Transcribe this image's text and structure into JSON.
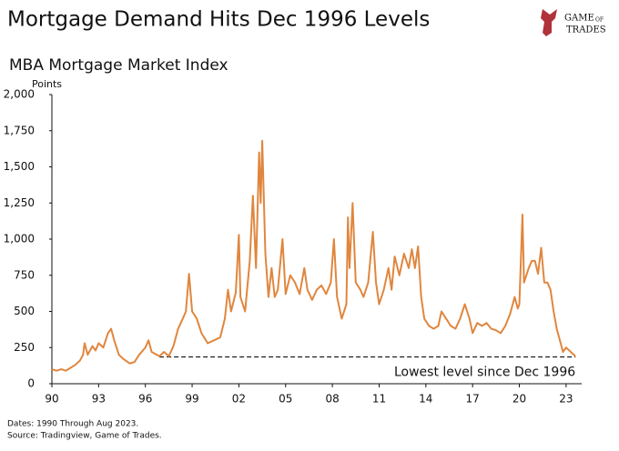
{
  "chart_data": {
    "type": "line",
    "title": "Mortgage Demand Hits Dec 1996 Levels",
    "subtitle": "MBA Mortgage Market Index",
    "y_label": "Points",
    "color": "#e0863e",
    "x": [
      1990,
      1990.3,
      1990.6,
      1990.9,
      1991.2,
      1991.5,
      1991.8,
      1992.0,
      1992.1,
      1992.3,
      1992.6,
      1992.8,
      1993.0,
      1993.3,
      1993.6,
      1993.8,
      1994.0,
      1994.3,
      1994.6,
      1995.0,
      1995.3,
      1995.6,
      1996.0,
      1996.2,
      1996.4,
      1996.9,
      1997.2,
      1997.5,
      1997.8,
      1998.1,
      1998.4,
      1998.6,
      1998.8,
      1999.0,
      1999.3,
      1999.6,
      2000.0,
      2000.4,
      2000.8,
      2001.1,
      2001.3,
      2001.5,
      2001.8,
      2002.0,
      2002.1,
      2002.4,
      2002.7,
      2002.9,
      2003.1,
      2003.3,
      2003.4,
      2003.5,
      2003.7,
      2003.9,
      2004.1,
      2004.3,
      2004.5,
      2004.8,
      2005.0,
      2005.3,
      2005.6,
      2005.9,
      2006.2,
      2006.4,
      2006.7,
      2007.0,
      2007.3,
      2007.6,
      2007.9,
      2008.1,
      2008.3,
      2008.6,
      2008.9,
      2009.0,
      2009.1,
      2009.3,
      2009.5,
      2009.8,
      2010.0,
      2010.3,
      2010.6,
      2010.8,
      2011.0,
      2011.3,
      2011.6,
      2011.8,
      2012.0,
      2012.3,
      2012.6,
      2012.9,
      2013.1,
      2013.3,
      2013.5,
      2013.7,
      2013.9,
      2014.2,
      2014.5,
      2014.8,
      2015.0,
      2015.3,
      2015.6,
      2015.9,
      2016.2,
      2016.5,
      2016.8,
      2017.0,
      2017.3,
      2017.6,
      2017.9,
      2018.2,
      2018.5,
      2018.8,
      2019.1,
      2019.4,
      2019.7,
      2019.9,
      2020.0,
      2020.2,
      2020.3,
      2020.6,
      2020.8,
      2021.0,
      2021.2,
      2021.4,
      2021.6,
      2021.8,
      2022.0,
      2022.2,
      2022.4,
      2022.6,
      2022.8,
      2023.0,
      2023.2,
      2023.4,
      2023.6
    ],
    "values": [
      100,
      90,
      100,
      90,
      110,
      130,
      160,
      200,
      280,
      200,
      260,
      230,
      280,
      250,
      350,
      380,
      300,
      200,
      170,
      140,
      150,
      200,
      250,
      300,
      220,
      190,
      220,
      190,
      260,
      380,
      450,
      500,
      760,
      500,
      450,
      350,
      280,
      300,
      320,
      450,
      650,
      500,
      630,
      1030,
      600,
      500,
      850,
      1300,
      800,
      1600,
      1250,
      1680,
      900,
      600,
      800,
      600,
      650,
      1000,
      620,
      750,
      700,
      620,
      800,
      650,
      580,
      650,
      680,
      620,
      700,
      1000,
      600,
      450,
      550,
      1150,
      800,
      1250,
      700,
      650,
      600,
      700,
      1050,
      700,
      550,
      650,
      800,
      650,
      880,
      750,
      900,
      800,
      930,
      800,
      950,
      600,
      450,
      400,
      380,
      400,
      500,
      450,
      400,
      380,
      450,
      550,
      450,
      350,
      420,
      400,
      420,
      380,
      370,
      350,
      400,
      480,
      600,
      520,
      550,
      1170,
      700,
      800,
      850,
      850,
      760,
      940,
      700,
      700,
      650,
      500,
      380,
      300,
      220,
      250,
      230,
      210,
      190
    ],
    "xlim": [
      1990,
      2024
    ],
    "xticks": [
      {
        "value": 1990,
        "label": "90"
      },
      {
        "value": 1993,
        "label": "93"
      },
      {
        "value": 1996,
        "label": "96"
      },
      {
        "value": 1999,
        "label": "99"
      },
      {
        "value": 2002,
        "label": "02"
      },
      {
        "value": 2005,
        "label": "05"
      },
      {
        "value": 2008,
        "label": "08"
      },
      {
        "value": 2011,
        "label": "11"
      },
      {
        "value": 2014,
        "label": "14"
      },
      {
        "value": 2017,
        "label": "17"
      },
      {
        "value": 2020,
        "label": "20"
      },
      {
        "value": 2023,
        "label": "23"
      }
    ],
    "ylim": [
      0,
      2000
    ],
    "yticks": [
      0,
      250,
      500,
      750,
      {
        "value": 1000,
        "label": "1,000"
      },
      {
        "value": 1250,
        "label": "1,250"
      },
      {
        "value": 1500,
        "label": "1,500"
      },
      {
        "value": 1750,
        "label": "1,750"
      },
      {
        "value": 2000,
        "label": "2,000"
      }
    ],
    "grid": false,
    "reference_line": {
      "value": 185,
      "x_range": [
        1996.9,
        2023.6
      ],
      "label": "Lowest level since Dec 1996"
    },
    "notes": [
      "Dates: 1990 Through Aug 2023.",
      "Source: Tradingview, Game of Trades."
    ]
  },
  "brand": {
    "line1": "GAME",
    "line1_small": "OF",
    "line2": "TRADES"
  }
}
